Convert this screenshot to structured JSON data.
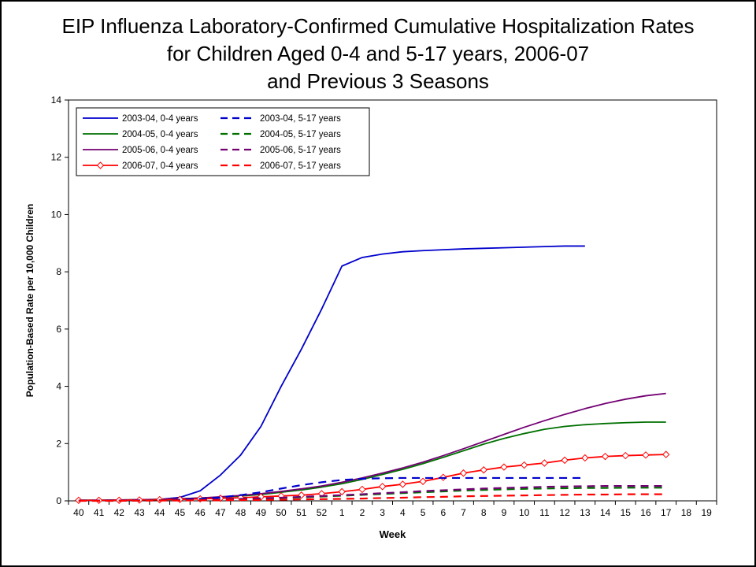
{
  "title": {
    "line1": "EIP Influenza Laboratory-Confirmed Cumulative Hospitalization Rates",
    "line2": "for Children Aged 0-4 and 5-17 years, 2006-07",
    "line3": "and Previous 3 Seasons"
  },
  "chart_data": {
    "type": "line",
    "title": "EIP Influenza Laboratory-Confirmed Cumulative Hospitalization Rates for Children Aged 0-4 and 5-17 years, 2006-07 and Previous 3 Seasons",
    "xlabel": "Week",
    "ylabel": "Population-Based Rate per 10,000 Children",
    "ylim": [
      0,
      14
    ],
    "y_ticks": [
      0,
      2,
      4,
      6,
      8,
      10,
      12,
      14
    ],
    "grid": false,
    "legend_position": "top-left",
    "categories": [
      "40",
      "41",
      "42",
      "43",
      "44",
      "45",
      "46",
      "47",
      "48",
      "49",
      "50",
      "51",
      "52",
      "1",
      "2",
      "3",
      "4",
      "5",
      "6",
      "7",
      "8",
      "9",
      "10",
      "11",
      "12",
      "13",
      "14",
      "15",
      "16",
      "17",
      "18",
      "19"
    ],
    "series": [
      {
        "name": "2003-04, 0-4 years",
        "color": "#0000CC",
        "dash": "solid",
        "marker": "none",
        "values": [
          0.02,
          0.02,
          0.03,
          0.03,
          0.05,
          0.12,
          0.35,
          0.9,
          1.6,
          2.6,
          4.0,
          5.3,
          6.7,
          8.2,
          8.5,
          8.62,
          8.7,
          8.74,
          8.77,
          8.8,
          8.82,
          8.84,
          8.86,
          8.88,
          8.9,
          8.9,
          null,
          null,
          null,
          null,
          null,
          null
        ]
      },
      {
        "name": "2004-05, 0-4 years",
        "color": "#007000",
        "dash": "solid",
        "marker": "none",
        "values": [
          0.02,
          0.02,
          0.03,
          0.04,
          0.05,
          0.07,
          0.1,
          0.13,
          0.17,
          0.22,
          0.3,
          0.38,
          0.48,
          0.6,
          0.75,
          0.92,
          1.1,
          1.3,
          1.52,
          1.75,
          1.98,
          2.18,
          2.35,
          2.5,
          2.6,
          2.66,
          2.7,
          2.73,
          2.75,
          2.75,
          null,
          null
        ]
      },
      {
        "name": "2005-06, 0-4 years",
        "color": "#730073",
        "dash": "solid",
        "marker": "none",
        "values": [
          0.02,
          0.02,
          0.03,
          0.04,
          0.05,
          0.07,
          0.1,
          0.14,
          0.19,
          0.25,
          0.33,
          0.42,
          0.52,
          0.65,
          0.8,
          0.97,
          1.15,
          1.35,
          1.58,
          1.82,
          2.07,
          2.32,
          2.57,
          2.8,
          3.02,
          3.22,
          3.4,
          3.55,
          3.67,
          3.75,
          null,
          null
        ]
      },
      {
        "name": "2006-07, 0-4 years",
        "color": "#FF0000",
        "dash": "solid",
        "marker": "diamond",
        "values": [
          0.02,
          0.02,
          0.02,
          0.03,
          0.04,
          0.05,
          0.07,
          0.09,
          0.11,
          0.14,
          0.17,
          0.2,
          0.25,
          0.32,
          0.4,
          0.5,
          0.58,
          0.68,
          0.82,
          0.97,
          1.08,
          1.18,
          1.25,
          1.32,
          1.42,
          1.5,
          1.55,
          1.58,
          1.6,
          1.62,
          null,
          null
        ]
      },
      {
        "name": "2003-04, 5-17 years",
        "color": "#0000CC",
        "dash": "dashed",
        "marker": "none",
        "values": [
          0.01,
          0.01,
          0.01,
          0.02,
          0.02,
          0.04,
          0.07,
          0.12,
          0.2,
          0.3,
          0.43,
          0.55,
          0.65,
          0.73,
          0.77,
          0.79,
          0.8,
          0.8,
          0.8,
          0.8,
          0.8,
          0.8,
          0.8,
          0.8,
          0.8,
          0.8,
          null,
          null,
          null,
          null,
          null,
          null
        ]
      },
      {
        "name": "2004-05, 5-17 years",
        "color": "#007000",
        "dash": "dashed",
        "marker": "none",
        "values": [
          0.01,
          0.01,
          0.01,
          0.01,
          0.02,
          0.02,
          0.03,
          0.04,
          0.06,
          0.08,
          0.1,
          0.12,
          0.15,
          0.18,
          0.21,
          0.24,
          0.27,
          0.3,
          0.33,
          0.36,
          0.38,
          0.4,
          0.42,
          0.43,
          0.44,
          0.45,
          0.45,
          0.46,
          0.46,
          0.46,
          null,
          null
        ]
      },
      {
        "name": "2005-06, 5-17 years",
        "color": "#730073",
        "dash": "dashed",
        "marker": "none",
        "values": [
          0.01,
          0.01,
          0.01,
          0.01,
          0.02,
          0.02,
          0.03,
          0.05,
          0.07,
          0.09,
          0.11,
          0.14,
          0.17,
          0.2,
          0.23,
          0.27,
          0.3,
          0.34,
          0.37,
          0.4,
          0.43,
          0.45,
          0.47,
          0.49,
          0.5,
          0.51,
          0.52,
          0.52,
          0.52,
          0.52,
          null,
          null
        ]
      },
      {
        "name": "2006-07, 5-17 years",
        "color": "#FF0000",
        "dash": "dashed",
        "marker": "none",
        "values": [
          0.0,
          0.0,
          0.0,
          0.01,
          0.01,
          0.01,
          0.02,
          0.02,
          0.03,
          0.03,
          0.04,
          0.05,
          0.06,
          0.07,
          0.08,
          0.1,
          0.11,
          0.13,
          0.14,
          0.16,
          0.17,
          0.18,
          0.19,
          0.2,
          0.21,
          0.22,
          0.22,
          0.23,
          0.23,
          0.23,
          null,
          null
        ]
      }
    ]
  }
}
